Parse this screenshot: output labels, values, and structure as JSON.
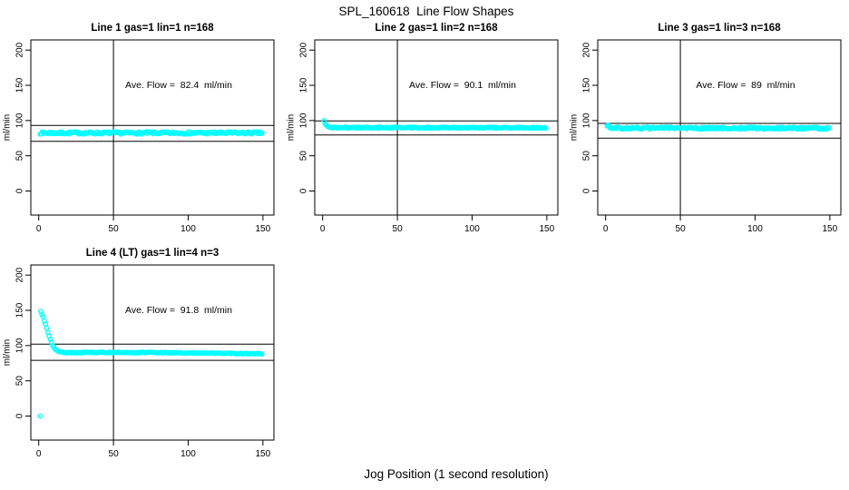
{
  "figure_title": "SPL_160618  Line Flow Shapes",
  "outer_xlabel": "Jog Position (1 second resolution)",
  "colors": {
    "points": "#00ffff",
    "axis": "#000000",
    "text": "#000000",
    "background": "#ffffff"
  },
  "chart_data": [
    {
      "type": "scatter",
      "title": "Line 1 gas=1 lin=1 n=168",
      "annotation": "Ave. Flow =  82.4  ml/min",
      "ave_flow_ml_min": 82.4,
      "n_runs": 168,
      "ylabel": "ml/min",
      "xlim": [
        0,
        150
      ],
      "ylim": [
        0,
        200
      ],
      "xticks": [
        0,
        50,
        100,
        150
      ],
      "yticks": [
        0,
        50,
        100,
        150,
        200
      ],
      "vline_x": 50,
      "ref_lines": {
        "upper": 93,
        "lower": 70.5
      },
      "profile": [
        [
          1,
          82.4
        ],
        [
          150,
          82.4
        ]
      ],
      "band_halfwidth": 1.7,
      "x_start": 1,
      "x_step": 0.7,
      "extra_points": [],
      "position": {
        "row": 0,
        "col": 0
      }
    },
    {
      "type": "scatter",
      "title": "Line 2 gas=1 lin=2 n=168",
      "annotation": "Ave. Flow =  90.1  ml/min",
      "ave_flow_ml_min": 90.1,
      "n_runs": 168,
      "ylabel": "ml/min",
      "xlim": [
        0,
        150
      ],
      "ylim": [
        0,
        200
      ],
      "xticks": [
        0,
        50,
        100,
        150
      ],
      "yticks": [
        0,
        50,
        100,
        150,
        200
      ],
      "vline_x": 50,
      "ref_lines": {
        "upper": 99.5,
        "lower": 79.5
      },
      "profile": [
        [
          1,
          100
        ],
        [
          1.8,
          94.5
        ],
        [
          3,
          91.8
        ],
        [
          4,
          90.8
        ],
        [
          6,
          90.2
        ],
        [
          10,
          90
        ],
        [
          150,
          89.8
        ]
      ],
      "band_halfwidth": 0.9,
      "x_start": 1,
      "x_step": 0.7,
      "extra_points": [],
      "position": {
        "row": 0,
        "col": 1
      }
    },
    {
      "type": "scatter",
      "title": "Line 3 gas=1 lin=3 n=168",
      "annotation": "Ave. Flow =  89  ml/min",
      "ave_flow_ml_min": 89,
      "n_runs": 168,
      "ylabel": "ml/min",
      "xlim": [
        0,
        150
      ],
      "ylim": [
        0,
        200
      ],
      "xticks": [
        0,
        50,
        100,
        150
      ],
      "yticks": [
        0,
        50,
        100,
        150,
        200
      ],
      "vline_x": 50,
      "ref_lines": {
        "upper": 96,
        "lower": 75
      },
      "profile": [
        [
          1,
          93.5
        ],
        [
          2,
          91.5
        ],
        [
          3,
          90.5
        ],
        [
          5,
          89.8
        ],
        [
          10,
          89.3
        ],
        [
          80,
          89.2
        ],
        [
          150,
          89
        ]
      ],
      "band_halfwidth": 1.5,
      "x_start": 1,
      "x_step": 0.7,
      "extra_points": [],
      "position": {
        "row": 0,
        "col": 2
      }
    },
    {
      "type": "scatter",
      "title": "Line 4 (LT) gas=1 lin=4 n=3",
      "annotation": "Ave. Flow =  91.8  ml/min",
      "ave_flow_ml_min": 91.8,
      "n_runs": 3,
      "ylabel": "ml/min",
      "xlim": [
        0,
        150
      ],
      "ylim": [
        0,
        200
      ],
      "xticks": [
        0,
        50,
        100,
        150
      ],
      "yticks": [
        0,
        50,
        100,
        150,
        200
      ],
      "vline_x": 50,
      "ref_lines": {
        "upper": 102,
        "lower": 79
      },
      "profile": [
        [
          1.3,
          148
        ],
        [
          2.5,
          143
        ],
        [
          3.5,
          137
        ],
        [
          4.5,
          130
        ],
        [
          5.5,
          123
        ],
        [
          6.5,
          116
        ],
        [
          7.5,
          110
        ],
        [
          8.5,
          104.5
        ],
        [
          9.5,
          100
        ],
        [
          10.5,
          96.5
        ],
        [
          11.5,
          94
        ],
        [
          12.5,
          92.3
        ],
        [
          13.5,
          91.3
        ],
        [
          15,
          90.6
        ],
        [
          17,
          90.2
        ],
        [
          20,
          90
        ],
        [
          40,
          90.3
        ],
        [
          70,
          90.2
        ],
        [
          100,
          89.6
        ],
        [
          125,
          89
        ],
        [
          140,
          88.6
        ],
        [
          150,
          88.2
        ]
      ],
      "band_halfwidth": 0.7,
      "x_start": 1.3,
      "x_step": 0.8,
      "extra_points": [
        [
          1,
          0
        ]
      ],
      "position": {
        "row": 1,
        "col": 0
      }
    }
  ]
}
